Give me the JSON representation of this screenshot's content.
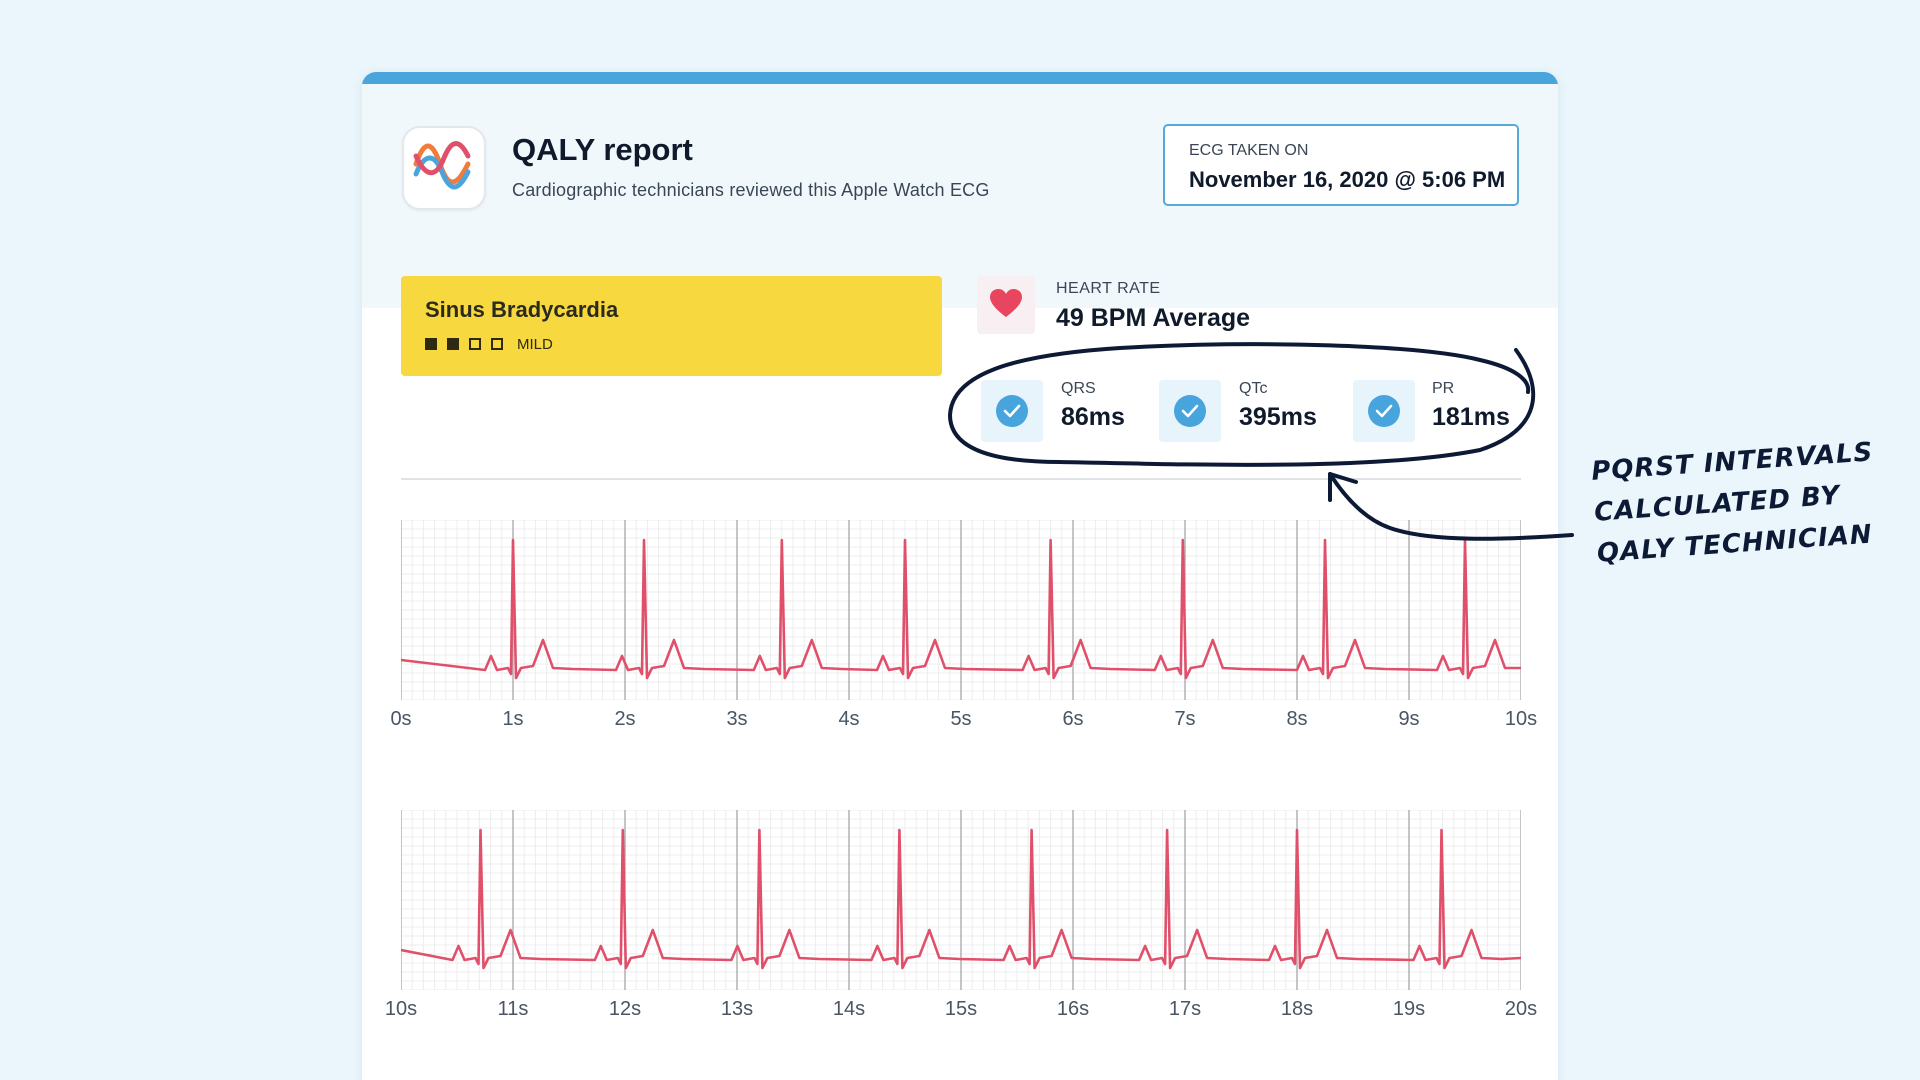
{
  "report": {
    "title": "QALY report",
    "subtitle": "Cardiographic technicians reviewed this Apple Watch ECG",
    "ecg_taken_label": "ECG TAKEN ON",
    "ecg_taken_value": "November 16, 2020 @ 5:06 PM"
  },
  "diagnosis": {
    "title": "Sinus Bradycardia",
    "severity_label": "MILD",
    "severity_level": 2,
    "severity_max": 4
  },
  "heart_rate": {
    "label": "HEART RATE",
    "value": "49 BPM Average"
  },
  "metrics": [
    {
      "label": "QRS",
      "value": "86ms"
    },
    {
      "label": "QTc",
      "value": "395ms"
    },
    {
      "label": "PR",
      "value": "181ms"
    }
  ],
  "annotation": {
    "lines": [
      "PQRST INTERVALS",
      "CALCULATED BY",
      "QALY TECHNICIAN"
    ]
  },
  "ecg": {
    "strips": [
      {
        "ticks": [
          "0s",
          "1s",
          "2s",
          "3s",
          "4s",
          "5s",
          "6s",
          "7s",
          "8s",
          "9s",
          "10s"
        ],
        "start_s": 0,
        "end_s": 10,
        "beats_s": [
          1.0,
          2.17,
          3.4,
          4.5,
          5.8,
          6.98,
          8.25,
          9.5
        ]
      },
      {
        "ticks": [
          "10s",
          "11s",
          "12s",
          "13s",
          "14s",
          "15s",
          "16s",
          "17s",
          "18s",
          "19s",
          "20s"
        ],
        "start_s": 10,
        "end_s": 20,
        "beats_s": [
          10.71,
          11.98,
          13.2,
          14.45,
          15.63,
          16.84,
          18.0,
          19.29
        ]
      }
    ],
    "colors": {
      "trace": "#e0506a",
      "grid_minor": "#ececec",
      "grid_major": "#a6a6a6"
    }
  },
  "colors": {
    "accent": "#4aa5dc",
    "diagnosis_bg": "#f8d83f",
    "heart": "#e8465f",
    "ink": "#0d1a36"
  }
}
